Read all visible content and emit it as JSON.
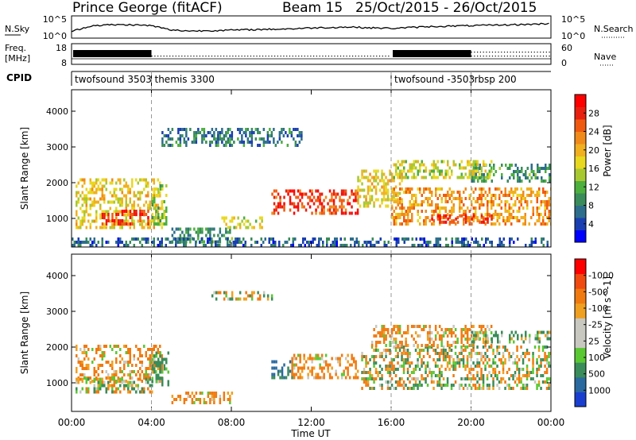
{
  "header": {
    "title": "Prince George (fitACF)",
    "beam": "Beam 15",
    "date_range": "25/Oct/2015 - 26/Oct/2015"
  },
  "noise_panel": {
    "left_label": "N.Sky",
    "right_label": "N.Search",
    "left_ticks": [
      "10^5",
      "10^0"
    ],
    "right_ticks": [
      "10^5",
      "10^0"
    ]
  },
  "freq_panel": {
    "left_label_1": "Freq.",
    "left_label_2": "[MHz]",
    "left_ticks": [
      "18",
      "8"
    ],
    "right_label": "Nave",
    "right_ticks": [
      "60",
      "0"
    ]
  },
  "cpid": {
    "label": "CPID",
    "segments": [
      {
        "name": "twofsound 3503",
        "start_hour": 0
      },
      {
        "name": "themis 3300",
        "start_hour": 4
      },
      {
        "name": "twofsound -3503",
        "start_hour": 16
      },
      {
        "name": "rbsp 200",
        "start_hour": 20
      }
    ]
  },
  "x_axis": {
    "title": "Time UT",
    "ticks": [
      "00:00",
      "04:00",
      "08:00",
      "12:00",
      "16:00",
      "20:00",
      "00:00"
    ]
  },
  "colors": {
    "power_scale": [
      "#0000ff",
      "#1a3fb0",
      "#2e6e8c",
      "#3a8c5a",
      "#4caf3e",
      "#a8c832",
      "#e8d820",
      "#f0b020",
      "#f08a1a",
      "#f05a10",
      "#e82010",
      "#ff0000"
    ],
    "velocity_scale": [
      "#1a3fd0",
      "#2a6aa0",
      "#3a8c5a",
      "#5ac832",
      "#c8c8c0",
      "#c8c8c0",
      "#f0a020",
      "#f07a10",
      "#f04a10",
      "#ff0000"
    ]
  },
  "chart_data": [
    {
      "type": "heatmap",
      "title": "Power",
      "ylabel": "Slant Range [km]",
      "xlabel": "",
      "y_ticks": [
        1000,
        2000,
        3000,
        4000
      ],
      "ylim": [
        200,
        4600
      ],
      "x_range_hours": [
        0,
        24
      ],
      "colorbar": {
        "label": "Power [dB]",
        "ticks": [
          "4",
          "8",
          "12",
          "16",
          "20",
          "24",
          "28"
        ],
        "range": [
          0,
          32
        ]
      },
      "bands": [
        {
          "t0": 0.2,
          "t1": 4.5,
          "r0": 700,
          "r1": 2100,
          "value": 18
        },
        {
          "t0": 1.5,
          "t1": 3.8,
          "r0": 800,
          "r1": 1200,
          "value": 28
        },
        {
          "t0": 4.0,
          "t1": 4.7,
          "r0": 800,
          "r1": 1900,
          "value": 14
        },
        {
          "t0": 5.0,
          "t1": 8.0,
          "r0": 300,
          "r1": 700,
          "value": 10
        },
        {
          "t0": 7.5,
          "t1": 9.5,
          "r0": 700,
          "r1": 1000,
          "value": 16
        },
        {
          "t0": 10.0,
          "t1": 14.3,
          "r0": 1100,
          "r1": 1800,
          "value": 27
        },
        {
          "t0": 14.3,
          "t1": 16.5,
          "r0": 1300,
          "r1": 2300,
          "value": 18
        },
        {
          "t0": 16.0,
          "t1": 24.0,
          "r0": 800,
          "r1": 1800,
          "value": 22
        },
        {
          "t0": 18.0,
          "t1": 21.0,
          "r0": 850,
          "r1": 1100,
          "value": 28
        },
        {
          "t0": 20.0,
          "t1": 24.0,
          "r0": 2000,
          "r1": 2500,
          "value": 10
        },
        {
          "t0": 16.0,
          "t1": 21.0,
          "r0": 2100,
          "r1": 2600,
          "value": 16
        },
        {
          "t0": 4.5,
          "t1": 11.5,
          "r0": 3000,
          "r1": 3500,
          "value": 8
        },
        {
          "t0": 0.0,
          "t1": 24.0,
          "r0": 200,
          "r1": 400,
          "value": 6
        }
      ]
    },
    {
      "type": "heatmap",
      "title": "Velocity",
      "ylabel": "Slant Range [km]",
      "xlabel": "Time UT",
      "y_ticks": [
        1000,
        2000,
        3000,
        4000
      ],
      "ylim": [
        200,
        4600
      ],
      "x_range_hours": [
        0,
        24
      ],
      "colorbar": {
        "label": "Velocity [m s^-1]",
        "ticks": [
          "1000",
          "500",
          "100",
          "25",
          "-25",
          "-100",
          "-500",
          "-1000"
        ],
        "range": [
          -1000,
          1000
        ]
      },
      "bands": [
        {
          "t0": 0.2,
          "t1": 4.5,
          "r0": 1000,
          "r1": 2000,
          "value": -150
        },
        {
          "t0": 0.2,
          "t1": 4.0,
          "r0": 700,
          "r1": 1100,
          "value": 0
        },
        {
          "t0": 4.0,
          "t1": 4.8,
          "r0": 900,
          "r1": 1800,
          "value": 200
        },
        {
          "t0": 5.0,
          "t1": 8.0,
          "r0": 400,
          "r1": 700,
          "value": -150
        },
        {
          "t0": 10.0,
          "t1": 11.0,
          "r0": 1100,
          "r1": 1600,
          "value": 500
        },
        {
          "t0": 11.0,
          "t1": 14.3,
          "r0": 1100,
          "r1": 1800,
          "value": -200
        },
        {
          "t0": 14.5,
          "t1": 24.0,
          "r0": 800,
          "r1": 2000,
          "value": 0
        },
        {
          "t0": 15.0,
          "t1": 21.0,
          "r0": 2000,
          "r1": 2600,
          "value": -150
        },
        {
          "t0": 20.0,
          "t1": 24.0,
          "r0": 2100,
          "r1": 2400,
          "value": 150
        },
        {
          "t0": 7.0,
          "t1": 10.0,
          "r0": 3300,
          "r1": 3500,
          "value": 0
        }
      ]
    },
    {
      "type": "line",
      "title": "N.Sky / N.Search",
      "x_hours": [
        0,
        1,
        2,
        3,
        4,
        5,
        6,
        7,
        8,
        9,
        10,
        11,
        12,
        13,
        14,
        15,
        16,
        17,
        18,
        19,
        20,
        21,
        22,
        23,
        24
      ],
      "series": [
        {
          "name": "N.Sky",
          "values": [
            1.5,
            2.8,
            3.0,
            3.0,
            2.8,
            1.8,
            1.6,
            1.7,
            1.8,
            1.9,
            2.0,
            2.1,
            2.3,
            2.4,
            2.5,
            2.3,
            2.2,
            2.4,
            2.6,
            2.7,
            2.8,
            2.9,
            3.0,
            3.1,
            3.3
          ]
        }
      ]
    }
  ]
}
